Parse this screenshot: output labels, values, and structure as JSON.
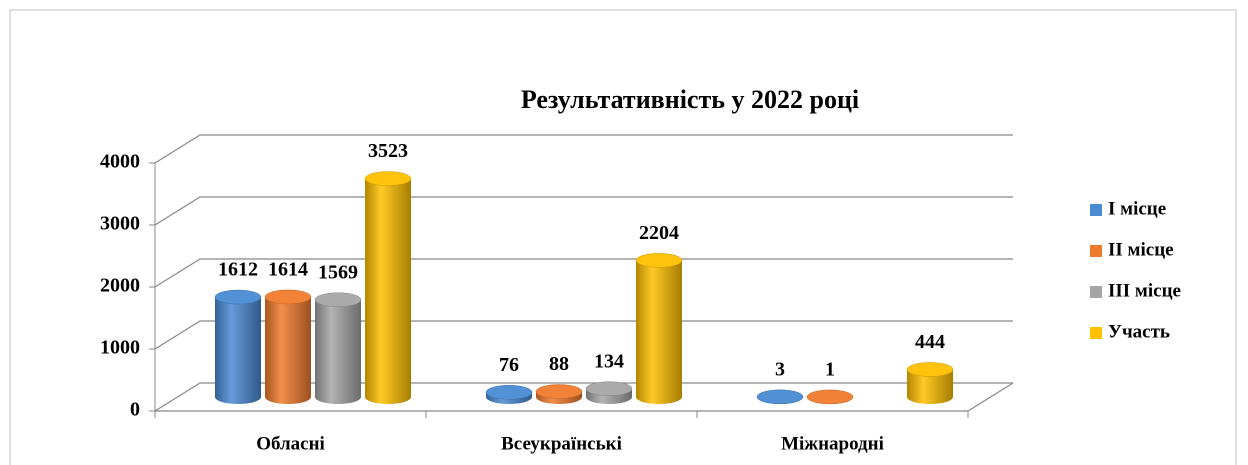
{
  "chart_data": {
    "type": "bar3d",
    "title": "Результативність у 2022 році",
    "categories": [
      "Обласні",
      "Всеукраїнські",
      "Міжнародні"
    ],
    "series": [
      {
        "name": "I місце",
        "color": "#4a8bd4",
        "values": [
          1612,
          76,
          3
        ]
      },
      {
        "name": "II місце",
        "color": "#f07b2c",
        "values": [
          1614,
          88,
          1
        ]
      },
      {
        "name": "III місце",
        "color": "#a5a5a5",
        "values": [
          1569,
          134,
          null
        ]
      },
      {
        "name": "Участь",
        "color": "#ffc000",
        "values": [
          3523,
          2204,
          444
        ]
      }
    ],
    "ylim": [
      0,
      4000
    ],
    "yticks": [
      0,
      1000,
      2000,
      3000,
      4000
    ],
    "grid": true,
    "legend": "right"
  }
}
